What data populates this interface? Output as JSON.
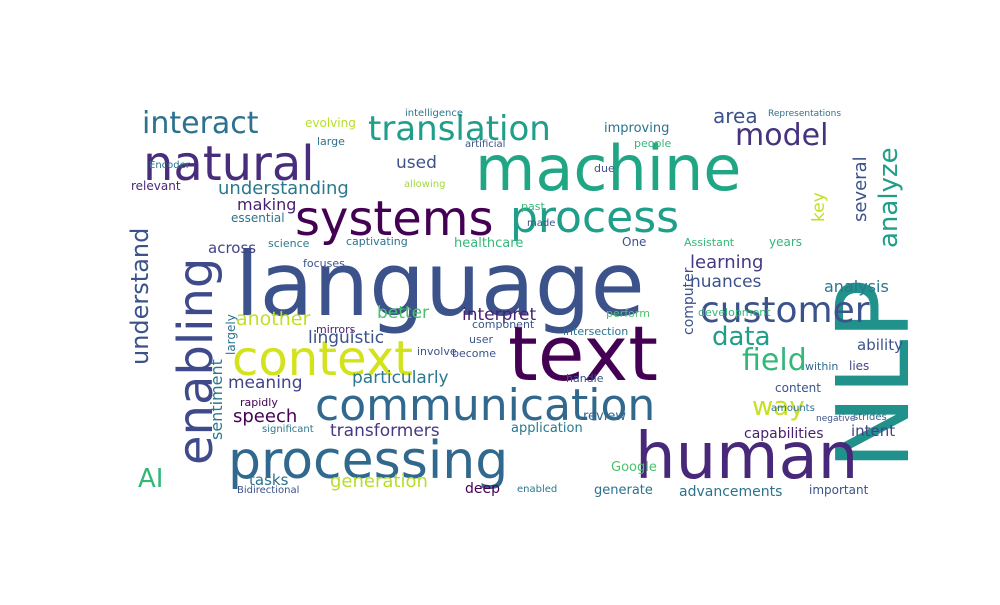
{
  "cloud": {
    "background": "#ffffff",
    "palette": [
      "#440154",
      "#3b528b",
      "#21918c",
      "#5ec962",
      "#fde725"
    ],
    "words": [
      {
        "text": "language",
        "color": "#3b528b"
      },
      {
        "text": "NLP",
        "color": "#21918c"
      },
      {
        "text": "machine",
        "color": "#21a685"
      },
      {
        "text": "text",
        "color": "#440154"
      },
      {
        "text": "human",
        "color": "#482878"
      },
      {
        "text": "processing",
        "color": "#31688e"
      },
      {
        "text": "communication",
        "color": "#31688e"
      },
      {
        "text": "systems",
        "color": "#440154"
      },
      {
        "text": "process",
        "color": "#1f9e89"
      },
      {
        "text": "natural",
        "color": "#472d7b"
      },
      {
        "text": "context",
        "color": "#d2e21b"
      },
      {
        "text": "enabling",
        "color": "#3e4a89"
      },
      {
        "text": "translation",
        "color": "#1f9e89"
      },
      {
        "text": "customer",
        "color": "#3b528b"
      },
      {
        "text": "interact",
        "color": "#2c728e"
      },
      {
        "text": "model",
        "color": "#46337e"
      },
      {
        "text": "analyze",
        "color": "#1f9e89"
      },
      {
        "text": "understand",
        "color": "#3b528b"
      },
      {
        "text": "field",
        "color": "#35b779"
      },
      {
        "text": "data",
        "color": "#1f9e89"
      },
      {
        "text": "way",
        "color": "#c8e020"
      },
      {
        "text": "AI",
        "color": "#35b779"
      },
      {
        "text": "understanding",
        "color": "#2a788e"
      },
      {
        "text": "sentiment",
        "color": "#2a788e"
      },
      {
        "text": "learning",
        "color": "#443983"
      },
      {
        "text": "generation",
        "color": "#b8de29"
      },
      {
        "text": "speech",
        "color": "#440154"
      },
      {
        "text": "particularly",
        "color": "#2a788e"
      },
      {
        "text": "transformers",
        "color": "#443983"
      },
      {
        "text": "meaning",
        "color": "#414487"
      },
      {
        "text": "another",
        "color": "#c2df23"
      },
      {
        "text": "linguistic",
        "color": "#3b528b"
      },
      {
        "text": "interpret",
        "color": "#481f70"
      },
      {
        "text": "nuances",
        "color": "#3b528b"
      },
      {
        "text": "analysis",
        "color": "#2a788e"
      },
      {
        "text": "several",
        "color": "#3b528b"
      },
      {
        "text": "key",
        "color": "#c2df23"
      },
      {
        "text": "area",
        "color": "#3b528b"
      },
      {
        "text": "used",
        "color": "#3b528b"
      },
      {
        "text": "better",
        "color": "#4ac16d"
      },
      {
        "text": "making",
        "color": "#481f70"
      },
      {
        "text": "across",
        "color": "#414487"
      },
      {
        "text": "tasks",
        "color": "#2c728e"
      },
      {
        "text": "computer",
        "color": "#3b528b"
      },
      {
        "text": "intent",
        "color": "#414487"
      },
      {
        "text": "ability",
        "color": "#3b528b"
      },
      {
        "text": "capabilities",
        "color": "#481f70"
      },
      {
        "text": "advancements",
        "color": "#2c728e"
      },
      {
        "text": "deep",
        "color": "#440154"
      },
      {
        "text": "generate",
        "color": "#2c728e"
      },
      {
        "text": "review",
        "color": "#31688e"
      },
      {
        "text": "application",
        "color": "#2a788e"
      },
      {
        "text": "Google",
        "color": "#4ac16d"
      },
      {
        "text": "important",
        "color": "#3b528b"
      },
      {
        "text": "content",
        "color": "#3b528b"
      },
      {
        "text": "improving",
        "color": "#2c728e"
      },
      {
        "text": "healthcare",
        "color": "#35b779"
      },
      {
        "text": "One",
        "color": "#3b528b"
      },
      {
        "text": "Assistant",
        "color": "#35b779"
      },
      {
        "text": "lies",
        "color": "#414487"
      },
      {
        "text": "essential",
        "color": "#2c728e"
      },
      {
        "text": "relevant",
        "color": "#482878"
      },
      {
        "text": "evolving",
        "color": "#b8de29"
      },
      {
        "text": "large",
        "color": "#2c728e"
      },
      {
        "text": "captivating",
        "color": "#2c728e"
      },
      {
        "text": "focuses",
        "color": "#3b528b"
      },
      {
        "text": "science",
        "color": "#2a788e"
      },
      {
        "text": "intelligence",
        "color": "#2a788e"
      },
      {
        "text": "artificial",
        "color": "#3b528b"
      },
      {
        "text": "development",
        "color": "#35b779"
      },
      {
        "text": "involve",
        "color": "#3b528b"
      },
      {
        "text": "mirrors",
        "color": "#481f70"
      },
      {
        "text": "become",
        "color": "#3b528b"
      },
      {
        "text": "intersection",
        "color": "#2c728e"
      },
      {
        "text": "user",
        "color": "#3b528b"
      },
      {
        "text": "component",
        "color": "#3b528b"
      },
      {
        "text": "largely",
        "color": "#2c728e"
      },
      {
        "text": "rapidly",
        "color": "#440154"
      },
      {
        "text": "significant",
        "color": "#2a788e"
      },
      {
        "text": "Bidirectional",
        "color": "#3b528b"
      },
      {
        "text": "enabled",
        "color": "#2a788e"
      },
      {
        "text": "within",
        "color": "#31688e"
      },
      {
        "text": "past",
        "color": "#35b779"
      },
      {
        "text": "made",
        "color": "#3b528b"
      },
      {
        "text": "due",
        "color": "#3b528b"
      },
      {
        "text": "people",
        "color": "#35b779"
      },
      {
        "text": "years",
        "color": "#35b779"
      },
      {
        "text": "perform",
        "color": "#4ac16d"
      },
      {
        "text": "handle",
        "color": "#3b528b"
      },
      {
        "text": "amounts",
        "color": "#2c728e"
      },
      {
        "text": "negative",
        "color": "#3b528b"
      },
      {
        "text": "strides",
        "color": "#31688e"
      },
      {
        "text": "allowing",
        "color": "#a0da39"
      },
      {
        "text": "Encoder",
        "color": "#2c728e"
      },
      {
        "text": "Representations",
        "color": "#2c728e"
      }
    ]
  }
}
